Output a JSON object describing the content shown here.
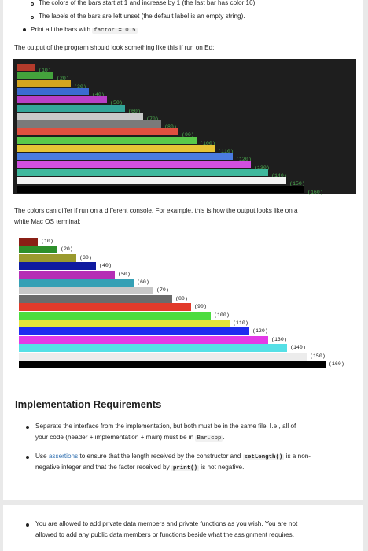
{
  "text": {
    "line_colors": "The colors of the bars start at 1 and increase by 1 (the last bar has color 16).",
    "line_labels": "The labels of the bars are left unset (the default label is an empty string).",
    "print_pre": "Print all the bars with ",
    "print_code": "factor = 0.5",
    "print_post": ".",
    "output_intro": "The output of the program should look something like this if run on Ed:",
    "colors_differ_1": "The colors can differ if run on a different console. For example, this is how the output looks like on a",
    "colors_differ_2": "white Mac OS terminal:",
    "heading": "Implementation Requirements",
    "req1_line1": "Separate the interface from the implementation, but both must be in the same file. I.e., all of",
    "req1_line2_pre": "your code (header + implementation + main) must be in ",
    "req1_code": "Bar.cpp",
    "req1_line2_post": ".",
    "req2_pre": "Use ",
    "req2_link": "assertions",
    "req2_mid": " to ensure that the length received by the constructor and ",
    "req2_code1": "setLength()",
    "req2_post1": " is a non-",
    "req2_line2_pre": "negative integer and that the factor received by ",
    "req2_code2": "print()",
    "req2_line2_post": " is not negative.",
    "req3_line1": "You are allowed to add private data members and private functions as you wish. You are not",
    "req3_line2": "allowed to add any public data members or functions beside what the assignment requires."
  },
  "ed_output": {
    "background": "#1e1e1e",
    "bars": [
      {
        "length": 10,
        "label": "(10)",
        "color": "#b33b2b"
      },
      {
        "length": 20,
        "label": "(20)",
        "color": "#44a33c"
      },
      {
        "length": 30,
        "label": "(30)",
        "color": "#d4a520"
      },
      {
        "length": 40,
        "label": "(40)",
        "color": "#3b6bd1"
      },
      {
        "length": 50,
        "label": "(50)",
        "color": "#b83fc7"
      },
      {
        "length": 60,
        "label": "(60)",
        "color": "#33a69a"
      },
      {
        "length": 70,
        "label": "(70)",
        "color": "#c9c9c9"
      },
      {
        "length": 80,
        "label": "(80)",
        "color": "#7a7a7a"
      },
      {
        "length": 90,
        "label": "(90)",
        "color": "#e0503f"
      },
      {
        "length": 100,
        "label": "(100)",
        "color": "#5ac94a"
      },
      {
        "length": 110,
        "label": "(110)",
        "color": "#e6c435"
      },
      {
        "length": 120,
        "label": "(120)",
        "color": "#4a7be0"
      },
      {
        "length": 130,
        "label": "(130)",
        "color": "#d24fe0"
      },
      {
        "length": 140,
        "label": "(140)",
        "color": "#3fb89d"
      },
      {
        "length": 150,
        "label": "(150)",
        "color": "#f2f2f2"
      },
      {
        "length": 160,
        "label": "(160)",
        "color": "#000000"
      }
    ]
  },
  "mac_output": {
    "background": "#ffffff",
    "bars": [
      {
        "length": 10,
        "label": "(10)",
        "color": "#8a1f15"
      },
      {
        "length": 20,
        "label": "(20)",
        "color": "#2d8f2a"
      },
      {
        "length": 30,
        "label": "(30)",
        "color": "#9a9a2e"
      },
      {
        "length": 40,
        "label": "(40)",
        "color": "#0f1aa0"
      },
      {
        "length": 50,
        "label": "(50)",
        "color": "#b52fb5"
      },
      {
        "length": 60,
        "label": "(60)",
        "color": "#35a0b5"
      },
      {
        "length": 70,
        "label": "(70)",
        "color": "#c8c8c8"
      },
      {
        "length": 80,
        "label": "(80)",
        "color": "#6b6b6b"
      },
      {
        "length": 90,
        "label": "(90)",
        "color": "#e23a2a"
      },
      {
        "length": 100,
        "label": "(100)",
        "color": "#4cdc3f"
      },
      {
        "length": 110,
        "label": "(110)",
        "color": "#e6e63a"
      },
      {
        "length": 120,
        "label": "(120)",
        "color": "#1e2cf0"
      },
      {
        "length": 130,
        "label": "(130)",
        "color": "#e23ae6"
      },
      {
        "length": 140,
        "label": "(140)",
        "color": "#55e0e6"
      },
      {
        "length": 150,
        "label": "(150)",
        "color": "#ececec"
      },
      {
        "length": 160,
        "label": "(160)",
        "color": "#000000"
      }
    ]
  }
}
